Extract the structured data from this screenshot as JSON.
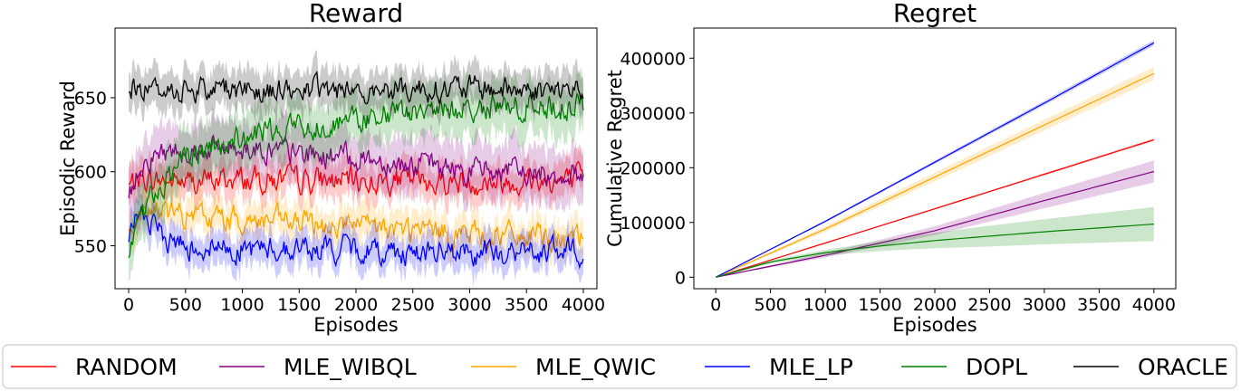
{
  "chart_data": [
    {
      "type": "line",
      "title": "Reward",
      "xlabel": "Episodes",
      "ylabel": "Episodic Reward",
      "xlim": [
        -120,
        4120
      ],
      "ylim": [
        521,
        697
      ],
      "xticks": [
        0,
        500,
        1000,
        1500,
        2000,
        2500,
        3000,
        3500,
        4000
      ],
      "yticks": [
        550,
        600,
        650
      ],
      "shaded_band": "mean ± std",
      "series": [
        {
          "name": "RANDOM",
          "color": "#ff0000",
          "x": [
            0,
            100,
            250,
            500,
            1000,
            1500,
            2000,
            2500,
            3000,
            3500,
            4000
          ],
          "mean": [
            590,
            596,
            594,
            593,
            595,
            594,
            594,
            594,
            593,
            594,
            594
          ],
          "band": [
            12,
            12,
            12,
            12,
            12,
            12,
            12,
            12,
            12,
            12,
            12
          ]
        },
        {
          "name": "MLE_WIBQL",
          "color": "#800080",
          "x": [
            0,
            100,
            250,
            500,
            1000,
            1500,
            2000,
            2500,
            3000,
            3500,
            4000
          ],
          "mean": [
            580,
            606,
            612,
            615,
            617,
            612,
            610,
            605,
            601,
            599,
            598
          ],
          "band": [
            18,
            18,
            18,
            18,
            18,
            18,
            18,
            18,
            18,
            18,
            18
          ]
        },
        {
          "name": "MLE_QWIC",
          "color": "#ffa500",
          "x": [
            0,
            100,
            250,
            500,
            1000,
            1500,
            2000,
            2500,
            3000,
            3500,
            4000
          ],
          "mean": [
            560,
            572,
            574,
            570,
            568,
            565,
            563,
            560,
            558,
            556,
            554
          ],
          "band": [
            11,
            11,
            11,
            11,
            11,
            11,
            11,
            11,
            11,
            11,
            11
          ]
        },
        {
          "name": "MLE_LP",
          "color": "#0000ff",
          "x": [
            0,
            100,
            250,
            500,
            1000,
            1500,
            2000,
            2500,
            3000,
            3500,
            4000
          ],
          "mean": [
            550,
            578,
            558,
            550,
            548,
            548,
            547,
            546,
            545,
            545,
            546
          ],
          "band": [
            11,
            11,
            11,
            11,
            11,
            11,
            11,
            11,
            11,
            11,
            11
          ]
        },
        {
          "name": "DOPL",
          "color": "#008000",
          "x": [
            0,
            100,
            250,
            500,
            1000,
            1500,
            2000,
            2500,
            3000,
            3500,
            4000
          ],
          "mean": [
            545,
            570,
            590,
            608,
            623,
            630,
            635,
            640,
            643,
            644,
            644
          ],
          "band": [
            18,
            18,
            18,
            18,
            18,
            18,
            18,
            18,
            18,
            18,
            18
          ]
        },
        {
          "name": "ORACLE",
          "color": "#000000",
          "x": [
            0,
            100,
            250,
            500,
            1000,
            1500,
            2000,
            2500,
            3000,
            3500,
            4000
          ],
          "mean": [
            657,
            656,
            655,
            656,
            656,
            655,
            655,
            656,
            656,
            655,
            655
          ],
          "band": [
            13,
            13,
            13,
            13,
            13,
            13,
            13,
            13,
            13,
            13,
            13
          ]
        }
      ]
    },
    {
      "type": "line",
      "title": "Regret",
      "xlabel": "Episodes",
      "ylabel": "Cumulative Regret",
      "xlim": [
        -200,
        4200
      ],
      "ylim": [
        -21000,
        455000
      ],
      "xticks": [
        0,
        500,
        1000,
        1500,
        2000,
        2500,
        3000,
        3500,
        4000
      ],
      "yticks": [
        0,
        100000,
        200000,
        300000,
        400000
      ],
      "shaded_band": "mean ± std",
      "series": [
        {
          "name": "RANDOM",
          "color": "#ff0000",
          "x": [
            0,
            1000,
            2000,
            3000,
            4000
          ],
          "mean": [
            0,
            62500,
            125000,
            188000,
            251000
          ],
          "band": [
            0,
            1000,
            1500,
            2000,
            2500
          ]
        },
        {
          "name": "MLE_WIBQL",
          "color": "#800080",
          "x": [
            0,
            1000,
            2000,
            3000,
            4000
          ],
          "mean": [
            0,
            40000,
            85000,
            140000,
            193000
          ],
          "band": [
            0,
            4000,
            8000,
            14000,
            20000
          ]
        },
        {
          "name": "MLE_QWIC",
          "color": "#ffa500",
          "x": [
            0,
            1000,
            2000,
            3000,
            4000
          ],
          "mean": [
            0,
            88000,
            183000,
            278000,
            372000
          ],
          "band": [
            0,
            5000,
            8000,
            10000,
            12000
          ]
        },
        {
          "name": "MLE_LP",
          "color": "#0000ff",
          "x": [
            0,
            1000,
            2000,
            3000,
            4000
          ],
          "mean": [
            0,
            102000,
            210000,
            318000,
            428000
          ],
          "band": [
            0,
            2000,
            3000,
            4000,
            5000
          ]
        },
        {
          "name": "DOPL",
          "color": "#008000",
          "x": [
            0,
            500,
            1000,
            1500,
            2000,
            2500,
            3000,
            3500,
            4000
          ],
          "mean": [
            0,
            28000,
            45000,
            57000,
            67000,
            75000,
            83000,
            90000,
            97000
          ],
          "band": [
            0,
            3000,
            5000,
            9000,
            14000,
            19000,
            23000,
            27000,
            31000
          ]
        },
        {
          "name": "ORACLE",
          "color": "#000000",
          "x": [
            0,
            4000
          ],
          "mean": [
            0,
            0
          ],
          "band": [
            0,
            0
          ]
        }
      ]
    }
  ],
  "legend": [
    {
      "label": "RANDOM",
      "color": "#ff0000"
    },
    {
      "label": "MLE_WIBQL",
      "color": "#800080"
    },
    {
      "label": "MLE_QWIC",
      "color": "#ffa500"
    },
    {
      "label": "MLE_LP",
      "color": "#0000ff"
    },
    {
      "label": "DOPL",
      "color": "#008000"
    },
    {
      "label": "ORACLE",
      "color": "#000000"
    }
  ]
}
